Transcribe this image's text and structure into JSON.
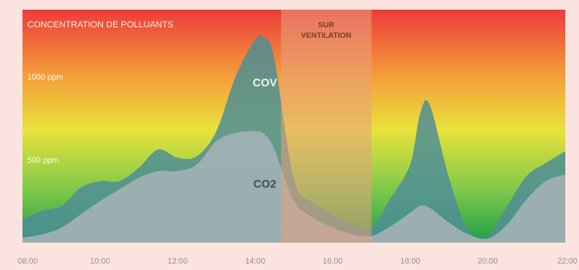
{
  "chart_data": {
    "type": "area",
    "title": "CONCENTRATION DE POLLUANTS",
    "annotation": "SUR\nVENTILATION",
    "x": [
      "08:00",
      "08:30",
      "09:00",
      "09:30",
      "10:00",
      "10:30",
      "11:00",
      "11:30",
      "12:00",
      "12:30",
      "13:00",
      "13:30",
      "14:00",
      "14:15",
      "14:30",
      "15:00",
      "15:30",
      "16:00",
      "16:30",
      "17:00",
      "17:30",
      "18:00",
      "18:15",
      "18:30",
      "19:00",
      "19:30",
      "20:00",
      "20:30",
      "21:00",
      "21:30",
      "22:00"
    ],
    "xticks": [
      "08:00",
      "10:00",
      "12:00",
      "14:00",
      "16:00",
      "18:00",
      "20:00",
      "22:00"
    ],
    "ytick_labels": [
      {
        "label": "1000 ppm",
        "value": 1000
      },
      {
        "label": "500 ppm",
        "value": 500
      }
    ],
    "ylim": [
      0,
      1400
    ],
    "series": [
      {
        "name": "CO2",
        "color": "#9fb0b3",
        "values": [
          30,
          50,
          90,
          170,
          250,
          320,
          390,
          430,
          430,
          470,
          610,
          660,
          670,
          650,
          560,
          250,
          150,
          90,
          50,
          40,
          100,
          180,
          220,
          210,
          120,
          50,
          25,
          110,
          260,
          370,
          410
        ]
      },
      {
        "name": "COV",
        "color": "#4f8e95",
        "values": [
          140,
          190,
          220,
          330,
          370,
          370,
          450,
          560,
          510,
          520,
          670,
          1000,
          1220,
          1230,
          1100,
          380,
          240,
          170,
          110,
          90,
          270,
          470,
          770,
          830,
          390,
          70,
          40,
          220,
          400,
          480,
          550
        ]
      }
    ],
    "shaded_region": {
      "x_start": "14:40",
      "x_end": "17:00",
      "color": "#e8a080"
    },
    "background_gradient": [
      "#ee3b3b",
      "#f4a33a",
      "#e7e23b",
      "#7cc84a",
      "#1e9e4a"
    ]
  }
}
